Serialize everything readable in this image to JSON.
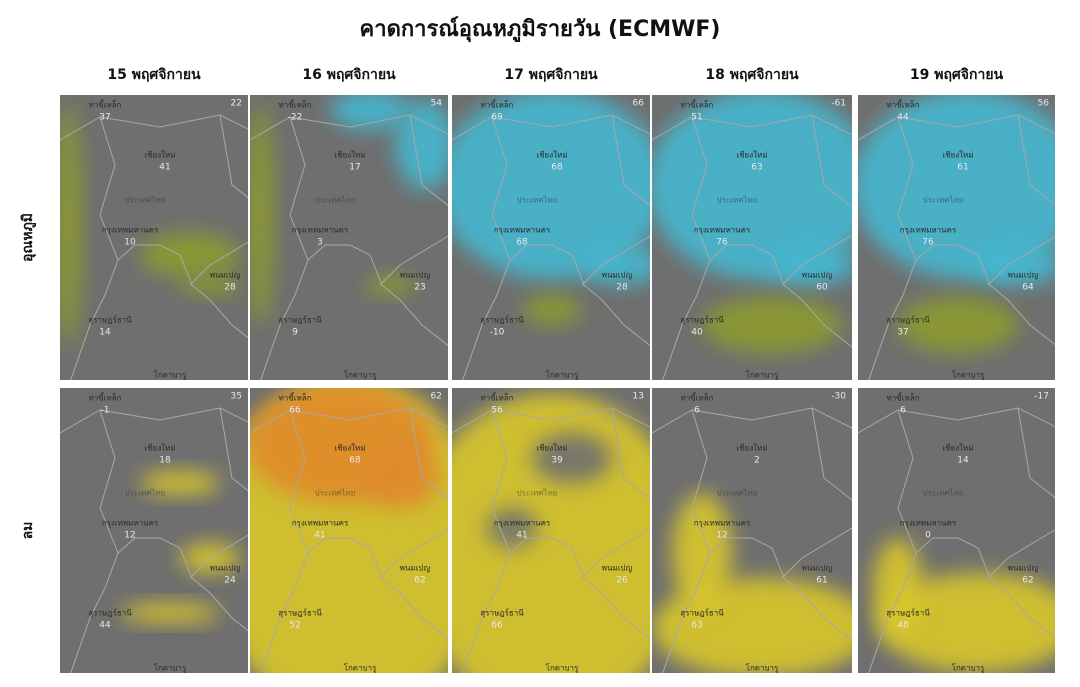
{
  "title": "คาดการณ์อุณหภูมิรายวัน (ECMWF)",
  "columns": [
    "15 พฤศจิกายน",
    "16 พฤศจิกายน",
    "17 พฤศจิกายน",
    "18 พฤศจิกายน",
    "19 พฤศจิกายน"
  ],
  "rows": [
    {
      "label": "อุณหภูมิ",
      "panels": [
        {
          "corner": "22",
          "cities": [
            {
              "name": "ท่าขี้เหล็ก",
              "value": "37"
            },
            {
              "name": "เชียงใหม่",
              "value": "41"
            },
            {
              "name": "ประเทศไทย"
            },
            {
              "name": "กรุงเทพมหานคร",
              "value": "10"
            },
            {
              "name": "พนมเปญ",
              "value": "28"
            },
            {
              "name": "สุราษฎร์ธานี",
              "value": "14"
            },
            {
              "name": "โกตาบารู"
            }
          ]
        },
        {
          "corner": "54",
          "cities": [
            {
              "name": "ท่าขี้เหล็ก",
              "value": "-22"
            },
            {
              "name": "เชียงใหม่",
              "value": "17"
            },
            {
              "name": "ประเทศไทย"
            },
            {
              "name": "กรุงเทพมหานคร",
              "value": "3"
            },
            {
              "name": "พนมเปญ",
              "value": "23"
            },
            {
              "name": "สุราษฎร์ธานี",
              "value": "9"
            },
            {
              "name": "โกตาบารู"
            }
          ]
        },
        {
          "corner": "66",
          "cities": [
            {
              "name": "ท่าขี้เหล็ก",
              "value": "69"
            },
            {
              "name": "เชียงใหม่",
              "value": "68"
            },
            {
              "name": "ประเทศไทย"
            },
            {
              "name": "กรุงเทพมหานคร",
              "value": "68"
            },
            {
              "name": "พนมเปญ",
              "value": "28"
            },
            {
              "name": "สุราษฎร์ธานี",
              "value": "-10"
            },
            {
              "name": "โกตาบารู"
            }
          ]
        },
        {
          "corner": "-61",
          "cities": [
            {
              "name": "ท่าขี้เหล็ก",
              "value": "51"
            },
            {
              "name": "เชียงใหม่",
              "value": "63"
            },
            {
              "name": "ประเทศไทย"
            },
            {
              "name": "กรุงเทพมหานคร",
              "value": "76"
            },
            {
              "name": "พนมเปญ",
              "value": "60"
            },
            {
              "name": "สุราษฎร์ธานี",
              "value": "40"
            },
            {
              "name": "โกตาบารู"
            }
          ]
        },
        {
          "corner": "56",
          "cities": [
            {
              "name": "ท่าขี้เหล็ก",
              "value": "44"
            },
            {
              "name": "เชียงใหม่",
              "value": "61"
            },
            {
              "name": "ประเทศไทย"
            },
            {
              "name": "กรุงเทพมหานคร",
              "value": "76"
            },
            {
              "name": "พนมเปญ",
              "value": "64"
            },
            {
              "name": "สุราษฎร์ธานี",
              "value": "37"
            },
            {
              "name": "โกตาบารู"
            }
          ]
        }
      ]
    },
    {
      "label": "ลม",
      "panels": [
        {
          "corner": "35",
          "cities": [
            {
              "name": "ท่าขี้เหล็ก",
              "value": "-1"
            },
            {
              "name": "เชียงใหม่",
              "value": "18"
            },
            {
              "name": "ประเทศไทย"
            },
            {
              "name": "กรุงเทพมหานคร",
              "value": "12"
            },
            {
              "name": "พนมเปญ",
              "value": "24"
            },
            {
              "name": "สุราษฎร์ธานี",
              "value": "44"
            },
            {
              "name": "โกตาบารู"
            }
          ]
        },
        {
          "corner": "62",
          "cities": [
            {
              "name": "ท่าขี้เหล็ก",
              "value": "66"
            },
            {
              "name": "เชียงใหม่",
              "value": "68"
            },
            {
              "name": "ประเทศไทย"
            },
            {
              "name": "กรุงเทพมหานคร",
              "value": "41"
            },
            {
              "name": "พนมเปญ",
              "value": "62"
            },
            {
              "name": "สุราษฎร์ธานี",
              "value": "52"
            },
            {
              "name": "โกตาบารู"
            }
          ]
        },
        {
          "corner": "13",
          "cities": [
            {
              "name": "ท่าขี้เหล็ก",
              "value": "56"
            },
            {
              "name": "เชียงใหม่",
              "value": "39"
            },
            {
              "name": "ประเทศไทย"
            },
            {
              "name": "กรุงเทพมหานคร",
              "value": "41"
            },
            {
              "name": "พนมเปญ",
              "value": "26"
            },
            {
              "name": "สุราษฎร์ธานี",
              "value": "66"
            },
            {
              "name": "โกตาบารู"
            }
          ]
        },
        {
          "corner": "-30",
          "cities": [
            {
              "name": "ท่าขี้เหล็ก",
              "value": "6"
            },
            {
              "name": "เชียงใหม่",
              "value": "2"
            },
            {
              "name": "ประเทศไทย"
            },
            {
              "name": "กรุงเทพมหานคร",
              "value": "12"
            },
            {
              "name": "พนมเปญ",
              "value": "61"
            },
            {
              "name": "สุราษฎร์ธานี",
              "value": "63"
            },
            {
              "name": "โกตาบารู"
            }
          ]
        },
        {
          "corner": "-17",
          "cities": [
            {
              "name": "ท่าขี้เหล็ก",
              "value": "6"
            },
            {
              "name": "เชียงใหม่",
              "value": "14"
            },
            {
              "name": "ประเทศไทย"
            },
            {
              "name": "กรุงเทพมหานคร",
              "value": "0"
            },
            {
              "name": "พนมเปญ",
              "value": "62"
            },
            {
              "name": "สุราษฎร์ธานี",
              "value": "48"
            },
            {
              "name": "โกตาบารู"
            }
          ]
        }
      ]
    }
  ]
}
